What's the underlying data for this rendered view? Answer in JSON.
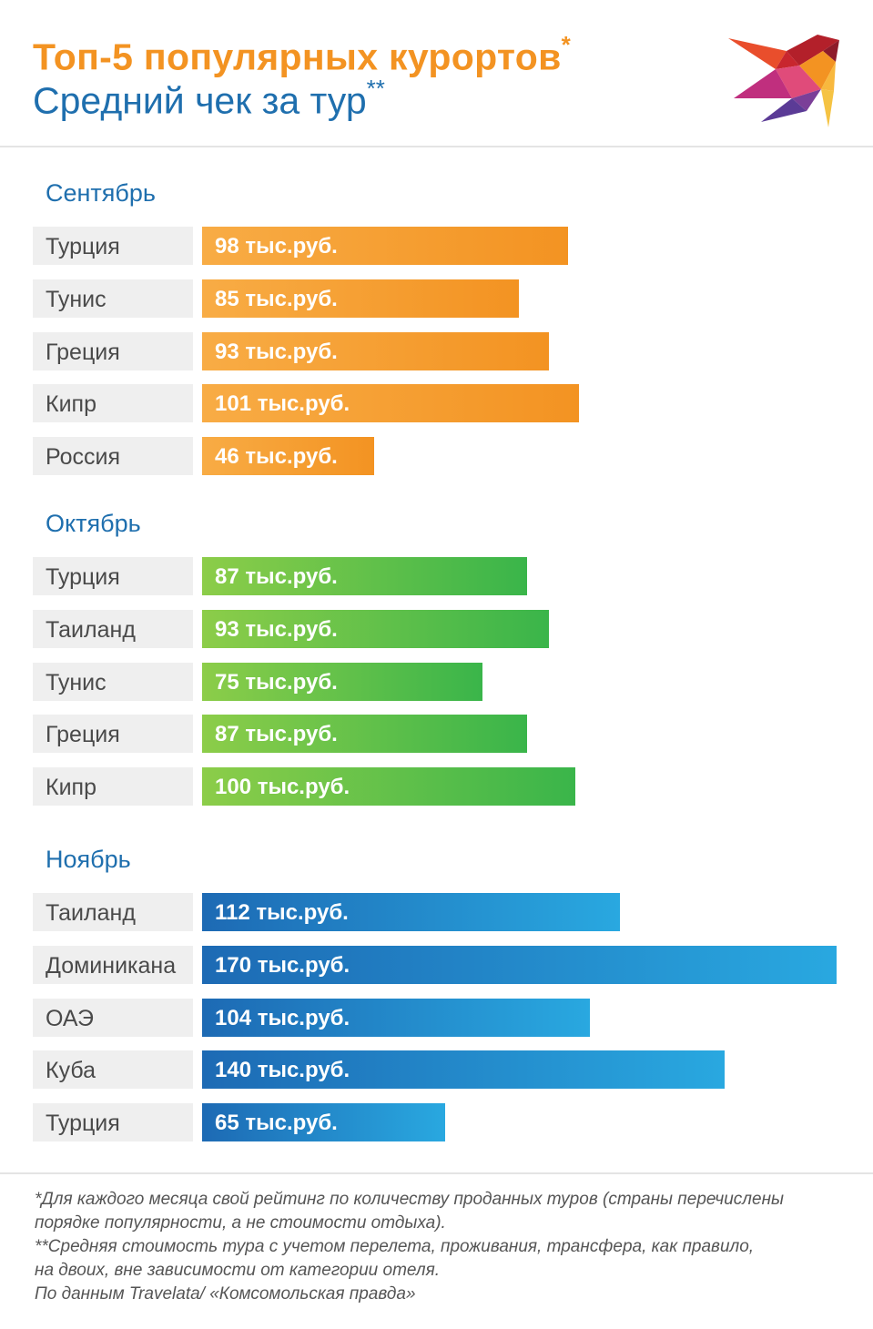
{
  "header": {
    "title_line1": "Топ-5 популярных курортов",
    "title_line1_mark": "*",
    "title_line2": "Средний чек за тур",
    "title_line2_mark": "**"
  },
  "colors": {
    "orange": "#f39322",
    "green": "#3ab54a",
    "blue": "#1d6ab4",
    "title_blue": "#1f6fae"
  },
  "logo": {
    "icon": "bird-logo-icon"
  },
  "chart_data": {
    "type": "bar",
    "orientation": "horizontal",
    "unit": "тыс.руб.",
    "groups": [
      {
        "month": "Сентябрь",
        "color": "#f39322",
        "categories": [
          "Турция",
          "Тунис",
          "Греция",
          "Кипр",
          "Россия"
        ],
        "values": [
          98,
          85,
          93,
          101,
          46
        ],
        "labels": [
          "98 тыс.руб.",
          "85 тыс.руб.",
          "93 тыс.руб.",
          "101 тыс.руб.",
          "46 тыс.руб."
        ]
      },
      {
        "month": "Октябрь",
        "color": "#3ab54a",
        "categories": [
          "Турция",
          "Таиланд",
          "Тунис",
          "Греция",
          "Кипр"
        ],
        "values": [
          87,
          93,
          75,
          87,
          100
        ],
        "labels": [
          "87 тыс.руб.",
          "93 тыс.руб.",
          "75 тыс.руб.",
          "87 тыс.руб.",
          "100 тыс.руб."
        ]
      },
      {
        "month": "Ноябрь",
        "color": "#1d6ab4",
        "categories": [
          "Таиланд",
          "Доминикана",
          "ОАЭ",
          "Куба",
          "Турция"
        ],
        "values": [
          112,
          170,
          104,
          140,
          65
        ],
        "labels": [
          "112 тыс.руб.",
          "170 тыс.руб.",
          "104 тыс.руб.",
          "140 тыс.руб.",
          "65 тыс.руб."
        ]
      }
    ]
  },
  "footnotes": [
    "*Для каждого месяца свой рейтинг по количеству проданных туров (страны перечислены",
    "порядке популярности, а не стоимости отдыха).",
    "**Средняя стоимость тура с учетом перелета, проживания, трансфера, как правило,",
    "на двоих, вне зависимости от категории отеля.",
    "По данным Travelata/ «Комсомольская правда»"
  ]
}
